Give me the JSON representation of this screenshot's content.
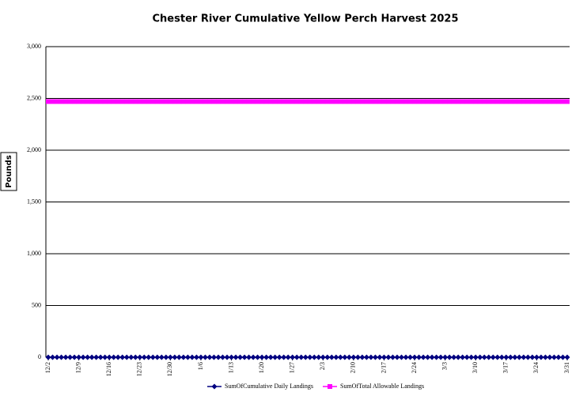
{
  "chart_data": {
    "type": "line",
    "title": "Chester River Cumulative Yellow Perch Harvest 2025",
    "y_label": "Pounds",
    "categories": [
      "12/2",
      null,
      null,
      null,
      null,
      null,
      null,
      "12/9",
      null,
      null,
      null,
      null,
      null,
      null,
      "12/16",
      null,
      null,
      null,
      null,
      null,
      null,
      "12/23",
      null,
      null,
      null,
      null,
      null,
      null,
      "12/30",
      null,
      null,
      null,
      null,
      null,
      null,
      "1/6",
      null,
      null,
      null,
      null,
      null,
      null,
      "1/13",
      null,
      null,
      null,
      null,
      null,
      null,
      "1/20",
      null,
      null,
      null,
      null,
      null,
      null,
      "1/27",
      null,
      null,
      null,
      null,
      null,
      null,
      "2/3",
      null,
      null,
      null,
      null,
      null,
      null,
      "2/10",
      null,
      null,
      null,
      null,
      null,
      null,
      "2/17",
      null,
      null,
      null,
      null,
      null,
      null,
      "2/24",
      null,
      null,
      null,
      null,
      null,
      null,
      "3/3",
      null,
      null,
      null,
      null,
      null,
      null,
      "3/10",
      null,
      null,
      null,
      null,
      null,
      null,
      "3/17",
      null,
      null,
      null,
      null,
      null,
      null,
      "3/24",
      null,
      null,
      null,
      null,
      null,
      null,
      "3/31"
    ],
    "series": [
      {
        "name": "SumOfCumulative Daily Landings",
        "color": "#000080",
        "marker": "diamond",
        "values": [
          0,
          0,
          0,
          0,
          0,
          0,
          0,
          0,
          0,
          0,
          0,
          0,
          0,
          0,
          0,
          0,
          0,
          0,
          0,
          0,
          0,
          0,
          0,
          0,
          0,
          0,
          0,
          0,
          0,
          0,
          0,
          0,
          0,
          0,
          0,
          0,
          0,
          0,
          0,
          0,
          0,
          0,
          0,
          0,
          0,
          0,
          0,
          0,
          0,
          0,
          0,
          0,
          0,
          0,
          0,
          0,
          0,
          0,
          0,
          0,
          0,
          0,
          0,
          0,
          0,
          0,
          0,
          0,
          0,
          0,
          0,
          0,
          0,
          0,
          0,
          0,
          0,
          0,
          0,
          0,
          0,
          0,
          0,
          0,
          0,
          0,
          0,
          0,
          0,
          0,
          0,
          0,
          0,
          0,
          0,
          0,
          0,
          0,
          0,
          0,
          0,
          0,
          0,
          0,
          0,
          0,
          0,
          0,
          0,
          0,
          0,
          0,
          0,
          0,
          0,
          0,
          0,
          0,
          0,
          0
        ]
      },
      {
        "name": "SumOfTotal Allowable Landings",
        "color": "#ff00ff",
        "marker": "square",
        "values": [
          2470,
          2470,
          2470,
          2470,
          2470,
          2470,
          2470,
          2470,
          2470,
          2470,
          2470,
          2470,
          2470,
          2470,
          2470,
          2470,
          2470,
          2470,
          2470,
          2470,
          2470,
          2470,
          2470,
          2470,
          2470,
          2470,
          2470,
          2470,
          2470,
          2470,
          2470,
          2470,
          2470,
          2470,
          2470,
          2470,
          2470,
          2470,
          2470,
          2470,
          2470,
          2470,
          2470,
          2470,
          2470,
          2470,
          2470,
          2470,
          2470,
          2470,
          2470,
          2470,
          2470,
          2470,
          2470,
          2470,
          2470,
          2470,
          2470,
          2470,
          2470,
          2470,
          2470,
          2470,
          2470,
          2470,
          2470,
          2470,
          2470,
          2470,
          2470,
          2470,
          2470,
          2470,
          2470,
          2470,
          2470,
          2470,
          2470,
          2470,
          2470,
          2470,
          2470,
          2470,
          2470,
          2470,
          2470,
          2470,
          2470,
          2470,
          2470,
          2470,
          2470,
          2470,
          2470,
          2470,
          2470,
          2470,
          2470,
          2470,
          2470,
          2470,
          2470,
          2470,
          2470,
          2470,
          2470,
          2470,
          2470,
          2470,
          2470,
          2470,
          2470,
          2470,
          2470,
          2470,
          2470,
          2470,
          2470,
          2470
        ]
      }
    ],
    "ylim": [
      0,
      3000
    ],
    "yticks": [
      0,
      500,
      {
        "value": 1000,
        "label": "1,000"
      },
      {
        "value": 1500,
        "label": "1,500"
      },
      {
        "value": 2000,
        "label": "2,000"
      },
      {
        "value": 2500,
        "label": "2,500"
      },
      {
        "value": 3000,
        "label": "3,000"
      }
    ],
    "grid": true,
    "legend": "bottom"
  }
}
